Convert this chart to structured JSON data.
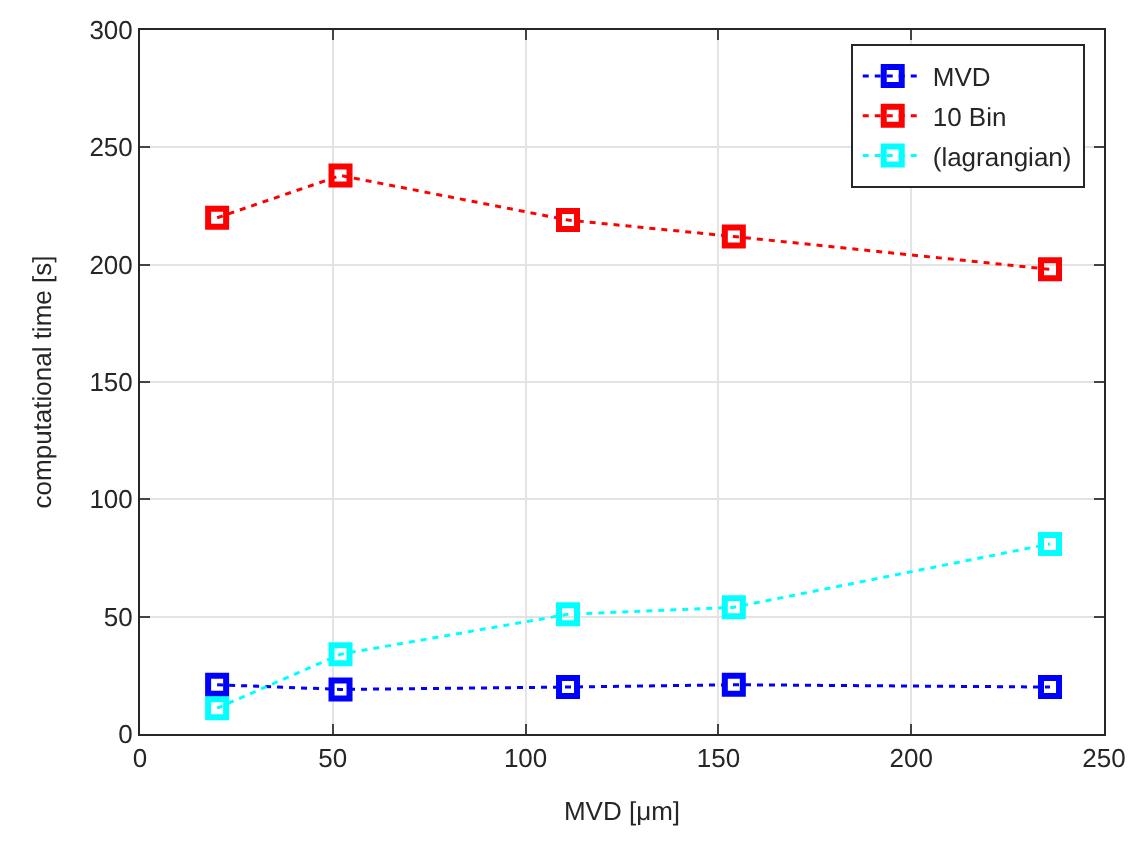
{
  "chart_data": {
    "type": "line",
    "xlabel": "MVD [μm]",
    "ylabel": "computational time [s]",
    "x": [
      20,
      52,
      111,
      154,
      236
    ],
    "series": [
      {
        "name": "MVD",
        "color": "#0000ff",
        "values": [
          21,
          19,
          20,
          21,
          20
        ]
      },
      {
        "name": "10 Bin",
        "color": "#ff0000",
        "values": [
          220,
          238,
          219,
          212,
          198
        ]
      },
      {
        "name": "(lagrangian)",
        "color": "#00ffff",
        "values": [
          11,
          34,
          51,
          54,
          81
        ]
      }
    ],
    "xlim": [
      0,
      250
    ],
    "xticks": [
      0,
      50,
      100,
      150,
      200,
      250
    ],
    "ylim": [
      0,
      300
    ],
    "yticks": [
      0,
      50,
      100,
      150,
      200,
      250,
      300
    ],
    "grid": true,
    "legend": "top right",
    "marker": "square",
    "line_style": "dotted"
  }
}
